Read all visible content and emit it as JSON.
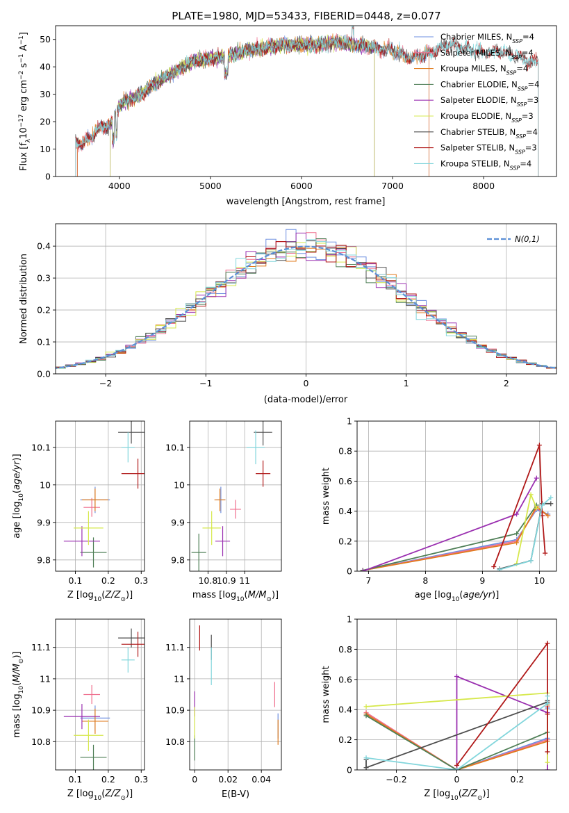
{
  "title": "PLATE=1980, MJD=53433, FIBERID=0448, z=0.077",
  "colors": {
    "Chabrier MILES": "#6e8fe0",
    "Salpeter MILES": "#ef6f8e",
    "Kroupa MILES": "#e07b1d",
    "Chabrier ELODIE": "#4f7f57",
    "Salpeter ELODIE": "#9a2fb0",
    "Kroupa ELODIE": "#d6e84c",
    "Chabrier STELIB": "#4d4d4d",
    "Salpeter STELIB": "#b01818",
    "Kroupa STELIB": "#82d6dc",
    "normal": "#5b8fd6"
  },
  "chart_data": [
    {
      "id": "spectrum",
      "type": "line",
      "xlabel": "wavelength [Angstrom, rest frame]",
      "ylabel": "Flux [f_λ10^-17 erg cm^-2 s^-1 A^-1]",
      "xlim": [
        3300,
        8800
      ],
      "ylim": [
        0,
        55
      ],
      "xticks": [
        4000,
        5000,
        6000,
        7000,
        8000
      ],
      "yticks": [
        0,
        10,
        20,
        30,
        40,
        50
      ],
      "grid": false,
      "legend_position": "right",
      "legend": [
        {
          "label": "Chabrier MILES, N",
          "sub": "SSP",
          "tail": "=4"
        },
        {
          "label": "Salpeter MILES, N",
          "sub": "SSP",
          "tail": "=4"
        },
        {
          "label": "Kroupa MILES, N",
          "sub": "SSP",
          "tail": "=4"
        },
        {
          "label": "Chabrier ELODIE, N",
          "sub": "SSP",
          "tail": "=4"
        },
        {
          "label": "Salpeter ELODIE, N",
          "sub": "SSP",
          "tail": "=3"
        },
        {
          "label": "Kroupa ELODIE, N",
          "sub": "SSP",
          "tail": "=3"
        },
        {
          "label": "Chabrier STELIB, N",
          "sub": "SSP",
          "tail": "=4"
        },
        {
          "label": "Salpeter STELIB, N",
          "sub": "SSP",
          "tail": "=3"
        },
        {
          "label": "Kroupa STELIB, N",
          "sub": "SSP",
          "tail": "=4"
        }
      ],
      "continuum_x": [
        3520,
        3600,
        3700,
        3800,
        3900,
        4000,
        4100,
        4200,
        4300,
        4400,
        4600,
        4800,
        5000,
        5200,
        5400,
        5600,
        5800,
        6000,
        6200,
        6400,
        6600,
        6800,
        7000,
        7200,
        7400,
        7600,
        7800,
        8000,
        8200,
        8500
      ],
      "continuum_y": [
        13,
        12,
        15,
        18,
        19,
        26,
        28,
        29,
        32,
        34,
        38,
        42,
        43,
        44,
        46,
        47,
        48,
        48,
        48,
        49,
        48,
        47,
        46,
        43,
        45,
        48,
        47,
        45,
        46,
        42
      ],
      "edges": {
        "MILES": [
          3540,
          7400
        ],
        "ELODIE": [
          3900,
          6800
        ],
        "STELIB": [
          3520,
          8600
        ]
      }
    },
    {
      "id": "residuals",
      "type": "histogram",
      "xlabel": "(data-model)/error",
      "ylabel": "Normed distribution",
      "xlim": [
        -2.5,
        2.5
      ],
      "ylim": [
        0,
        0.47
      ],
      "xticks": [
        -2,
        -1,
        0,
        1,
        2
      ],
      "yticks": [
        0.0,
        0.1,
        0.2,
        0.3,
        0.4
      ],
      "grid": true,
      "legend_position": "top-right",
      "normal_label": "N(0,1)",
      "bin_width": 0.1
    },
    {
      "id": "age-vs-z",
      "type": "scatter",
      "xlabel": "Z [log10(Z/Z⊙)]",
      "ylabel": "age  [log10(age/yr)]",
      "xlim": [
        0.04,
        0.31
      ],
      "ylim": [
        9.77,
        10.17
      ],
      "xticks": [
        0.1,
        0.2,
        0.3
      ],
      "yticks": [
        9.8,
        9.9,
        10.0,
        10.1
      ],
      "grid": true,
      "points": [
        {
          "s": "Chabrier MILES",
          "x": 0.16,
          "y": 9.96,
          "xe": 0.045,
          "ye": 0.035
        },
        {
          "s": "Salpeter MILES",
          "x": 0.15,
          "y": 9.94,
          "xe": 0.025,
          "ye": 0.025
        },
        {
          "s": "Kroupa MILES",
          "x": 0.16,
          "y": 9.96,
          "xe": 0.04,
          "ye": 0.03
        },
        {
          "s": "Chabrier ELODIE",
          "x": 0.155,
          "y": 9.82,
          "xe": 0.04,
          "ye": 0.04
        },
        {
          "s": "Salpeter ELODIE",
          "x": 0.12,
          "y": 9.85,
          "xe": 0.055,
          "ye": 0.04
        },
        {
          "s": "Kroupa ELODIE",
          "x": 0.14,
          "y": 9.885,
          "xe": 0.045,
          "ye": 0.045
        },
        {
          "s": "Chabrier STELIB",
          "x": 0.27,
          "y": 10.14,
          "xe": 0.04,
          "ye": 0.03
        },
        {
          "s": "Salpeter STELIB",
          "x": 0.29,
          "y": 10.03,
          "xe": 0.05,
          "ye": 0.04
        },
        {
          "s": "Kroupa STELIB",
          "x": 0.26,
          "y": 10.1,
          "xe": 0.02,
          "ye": 0.04
        }
      ]
    },
    {
      "id": "age-vs-mass",
      "type": "scatter",
      "xlabel": "mass [log10(M/M⊙)]",
      "ylabel": "",
      "xlim": [
        10.7,
        11.2
      ],
      "ylim": [
        9.77,
        10.17
      ],
      "xticks": [
        10.8,
        10.9,
        11.0
      ],
      "yticks": [
        9.8,
        9.9,
        10.0,
        10.1
      ],
      "grid": true,
      "points": [
        {
          "s": "Chabrier MILES",
          "x": 10.87,
          "y": 9.96,
          "xe": 0.025,
          "ye": 0.035
        },
        {
          "s": "Salpeter MILES",
          "x": 10.95,
          "y": 9.935,
          "xe": 0.03,
          "ye": 0.025
        },
        {
          "s": "Kroupa MILES",
          "x": 10.865,
          "y": 9.96,
          "xe": 0.03,
          "ye": 0.03
        },
        {
          "s": "Chabrier ELODIE",
          "x": 10.75,
          "y": 9.82,
          "xe": 0.04,
          "ye": 0.05
        },
        {
          "s": "Salpeter ELODIE",
          "x": 10.88,
          "y": 9.85,
          "xe": 0.04,
          "ye": 0.04
        },
        {
          "s": "Kroupa ELODIE",
          "x": 10.82,
          "y": 9.885,
          "xe": 0.05,
          "ye": 0.045
        },
        {
          "s": "Chabrier STELIB",
          "x": 11.1,
          "y": 10.14,
          "xe": 0.05,
          "ye": 0.035
        },
        {
          "s": "Salpeter STELIB",
          "x": 11.1,
          "y": 10.03,
          "xe": 0.04,
          "ye": 0.035
        },
        {
          "s": "Kroupa STELIB",
          "x": 11.06,
          "y": 10.1,
          "xe": 0.05,
          "ye": 0.045
        }
      ]
    },
    {
      "id": "mass-weight-vs-age",
      "type": "line",
      "xlabel": "age  [log10(age/yr)]",
      "ylabel": "mass weight",
      "xlim": [
        6.8,
        10.3
      ],
      "ylim": [
        0,
        1.0
      ],
      "xticks": [
        7,
        8,
        9,
        10
      ],
      "yticks": [
        0.0,
        0.2,
        0.4,
        0.6,
        0.8,
        1.0
      ],
      "grid": true,
      "series": [
        {
          "s": "Chabrier MILES",
          "x": [
            6.9,
            9.6,
            9.95,
            10.15
          ],
          "y": [
            0.005,
            0.21,
            0.41,
            0.38
          ]
        },
        {
          "s": "Salpeter MILES",
          "x": [
            6.9,
            9.6,
            9.95,
            10.15
          ],
          "y": [
            0.005,
            0.2,
            0.42,
            0.37
          ]
        },
        {
          "s": "Kroupa MILES",
          "x": [
            6.9,
            9.6,
            9.95,
            10.15
          ],
          "y": [
            0.005,
            0.19,
            0.43,
            0.37
          ]
        },
        {
          "s": "Chabrier ELODIE",
          "x": [
            6.9,
            9.6,
            9.95
          ],
          "y": [
            0.005,
            0.25,
            0.44
          ]
        },
        {
          "s": "Salpeter ELODIE",
          "x": [
            6.9,
            9.6,
            9.95
          ],
          "y": [
            0.0,
            0.38,
            0.62
          ]
        },
        {
          "s": "Kroupa ELODIE",
          "x": [
            9.6,
            9.85,
            9.95
          ],
          "y": [
            0.05,
            0.51,
            0.42
          ]
        },
        {
          "s": "Chabrier STELIB",
          "x": [
            9.3,
            9.85,
            10.05,
            10.2
          ],
          "y": [
            0.015,
            0.07,
            0.45,
            0.45
          ]
        },
        {
          "s": "Salpeter STELIB",
          "x": [
            9.2,
            10.0,
            10.05,
            10.1
          ],
          "y": [
            0.03,
            0.84,
            0.37,
            0.12
          ]
        },
        {
          "s": "Kroupa STELIB",
          "x": [
            9.3,
            9.85,
            10.05,
            10.2
          ],
          "y": [
            0.01,
            0.07,
            0.44,
            0.49
          ]
        }
      ]
    },
    {
      "id": "mass-vs-z",
      "type": "scatter",
      "xlabel": "Z [log10(Z/Z⊙)]",
      "ylabel": "mass [log10(M/M⊙)]",
      "xlim": [
        0.04,
        0.31
      ],
      "ylim": [
        10.71,
        11.19
      ],
      "xticks": [
        0.1,
        0.2,
        0.3
      ],
      "yticks": [
        10.8,
        10.9,
        11.0,
        11.1
      ],
      "grid": true,
      "points": [
        {
          "s": "Chabrier MILES",
          "x": 0.16,
          "y": 10.875,
          "xe": 0.045,
          "ye": 0.04
        },
        {
          "s": "Salpeter MILES",
          "x": 0.15,
          "y": 10.95,
          "xe": 0.025,
          "ye": 0.03
        },
        {
          "s": "Kroupa MILES",
          "x": 0.16,
          "y": 10.865,
          "xe": 0.04,
          "ye": 0.04
        },
        {
          "s": "Chabrier ELODIE",
          "x": 0.155,
          "y": 10.75,
          "xe": 0.04,
          "ye": 0.04
        },
        {
          "s": "Salpeter ELODIE",
          "x": 0.12,
          "y": 10.88,
          "xe": 0.055,
          "ye": 0.04
        },
        {
          "s": "Kroupa ELODIE",
          "x": 0.14,
          "y": 10.82,
          "xe": 0.045,
          "ye": 0.05
        },
        {
          "s": "Chabrier STELIB",
          "x": 0.27,
          "y": 11.13,
          "xe": 0.04,
          "ye": 0.03
        },
        {
          "s": "Salpeter STELIB",
          "x": 0.29,
          "y": 11.11,
          "xe": 0.05,
          "ye": 0.04
        },
        {
          "s": "Kroupa STELIB",
          "x": 0.26,
          "y": 11.06,
          "xe": 0.02,
          "ye": 0.04
        }
      ]
    },
    {
      "id": "mass-vs-ebv",
      "type": "scatter",
      "xlabel": "E(B-V)",
      "ylabel": "",
      "xlim": [
        -0.003,
        0.052
      ],
      "ylim": [
        10.71,
        11.19
      ],
      "xticks": [
        0.0,
        0.02,
        0.04
      ],
      "yticks": [
        10.8,
        10.9,
        11.0,
        11.1
      ],
      "grid": true,
      "points": [
        {
          "s": "Chabrier MILES",
          "x": 0.05,
          "y": 10.85,
          "xe": 0,
          "ye": 0.04
        },
        {
          "s": "Salpeter MILES",
          "x": 0.048,
          "y": 10.95,
          "xe": 0,
          "ye": 0.04
        },
        {
          "s": "Kroupa MILES",
          "x": 0.05,
          "y": 10.83,
          "xe": 0,
          "ye": 0.04
        },
        {
          "s": "Chabrier ELODIE",
          "x": 0.0,
          "y": 10.78,
          "xe": 0,
          "ye": 0.04
        },
        {
          "s": "Salpeter ELODIE",
          "x": 0.0,
          "y": 10.92,
          "xe": 0,
          "ye": 0.04
        },
        {
          "s": "Kroupa ELODIE",
          "x": 0.0,
          "y": 10.86,
          "xe": 0,
          "ye": 0.05
        },
        {
          "s": "Chabrier STELIB",
          "x": 0.01,
          "y": 11.1,
          "xe": 0,
          "ye": 0.04
        },
        {
          "s": "Salpeter STELIB",
          "x": 0.003,
          "y": 11.13,
          "xe": 0,
          "ye": 0.04
        },
        {
          "s": "Kroupa STELIB",
          "x": 0.01,
          "y": 11.04,
          "xe": 0,
          "ye": 0.06
        }
      ]
    },
    {
      "id": "mass-weight-vs-z",
      "type": "line",
      "xlabel": "Z [log10(Z/Z⊙)]",
      "ylabel": "mass weight",
      "xlim": [
        -0.33,
        0.33
      ],
      "ylim": [
        0,
        1.0
      ],
      "xticks": [
        -0.2,
        0.0,
        0.2
      ],
      "yticks": [
        0.0,
        0.2,
        0.4,
        0.6,
        0.8,
        1.0
      ],
      "grid": true,
      "series": [
        {
          "s": "Chabrier MILES",
          "x": [
            -0.3,
            0.0,
            0.3,
            0.3
          ],
          "y": [
            0.37,
            0.0,
            0.21,
            0.41
          ]
        },
        {
          "s": "Salpeter MILES",
          "x": [
            -0.3,
            0.0,
            0.3,
            0.3
          ],
          "y": [
            0.38,
            0.0,
            0.2,
            0.42
          ]
        },
        {
          "s": "Kroupa MILES",
          "x": [
            -0.3,
            0.0,
            0.3,
            0.3
          ],
          "y": [
            0.37,
            0.0,
            0.19,
            0.43
          ]
        },
        {
          "s": "Chabrier ELODIE",
          "x": [
            -0.3,
            0.0,
            0.3,
            0.3
          ],
          "y": [
            0.36,
            0.0,
            0.25,
            0.44
          ]
        },
        {
          "s": "Salpeter ELODIE",
          "x": [
            0.0,
            0.0,
            0.3,
            0.3
          ],
          "y": [
            0.0,
            0.62,
            0.38,
            0.0
          ]
        },
        {
          "s": "Kroupa ELODIE",
          "x": [
            -0.3,
            0.3,
            0.3
          ],
          "y": [
            0.42,
            0.51,
            0.05
          ]
        },
        {
          "s": "Chabrier STELIB",
          "x": [
            -0.3,
            -0.3,
            0.3,
            0.3
          ],
          "y": [
            0.07,
            0.015,
            0.45,
            0.46
          ]
        },
        {
          "s": "Salpeter STELIB",
          "x": [
            0.0,
            0.3,
            0.3,
            0.3
          ],
          "y": [
            0.03,
            0.84,
            0.37,
            0.12
          ]
        },
        {
          "s": "Kroupa STELIB",
          "x": [
            -0.3,
            0.0,
            0.3,
            0.3
          ],
          "y": [
            0.08,
            0.0,
            0.44,
            0.49
          ]
        }
      ]
    }
  ]
}
